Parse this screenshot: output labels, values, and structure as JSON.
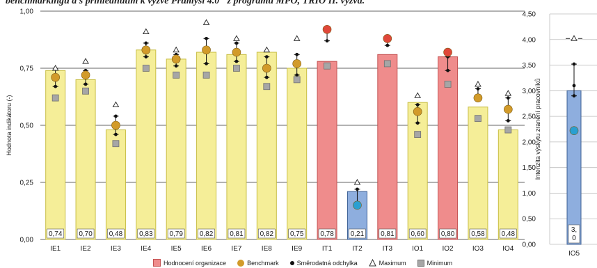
{
  "caption": "benchmarkingu a s přihlédnutím k výzvě Průmysl 4.0\" z programu MPO, TRIO II. výzva.",
  "colors": {
    "yellow": "#f5ee98",
    "yellow_stroke": "#c8be45",
    "red": "#ef8c8c",
    "red_stroke": "#c45353",
    "blue": "#8eaede",
    "blue_stroke": "#3c5f93",
    "benchmark": "#d29b2a",
    "benchmark_red": "#e0473a",
    "benchmark_blue": "#2a9fd1",
    "minimum": "#a6a6a6",
    "grid": "#666666"
  },
  "legend": [
    {
      "label": "Hodnocení organizace",
      "symbol": "red-square"
    },
    {
      "label": "Benchmark",
      "symbol": "orange-circle"
    },
    {
      "label": "Směrodatná odchylka",
      "symbol": "black-dot"
    },
    {
      "label": "Maximum",
      "symbol": "triangle"
    },
    {
      "label": "Minimum",
      "symbol": "grey-square"
    }
  ],
  "chart_data": [
    {
      "type": "bar",
      "ylabel": "Hodnota indikátoru (-)",
      "ylim": [
        0,
        1
      ],
      "yticks": [
        0,
        0.25,
        0.5,
        0.75,
        1
      ],
      "ytick_labels": [
        "0,00",
        "0,25",
        "0,50",
        "0,75",
        "1,00"
      ],
      "categories": [
        "IE1",
        "IE2",
        "IE3",
        "IE4",
        "IE5",
        "IE6",
        "IE7",
        "IE8",
        "IE9",
        "IT1",
        "IT2",
        "IT3",
        "IO1",
        "IO2",
        "IO3",
        "IO4"
      ],
      "bar_colors": [
        "yellow",
        "yellow",
        "yellow",
        "yellow",
        "yellow",
        "yellow",
        "yellow",
        "yellow",
        "yellow",
        "red",
        "blue",
        "red",
        "yellow",
        "red",
        "yellow",
        "yellow"
      ],
      "values": [
        0.74,
        0.7,
        0.48,
        0.83,
        0.79,
        0.82,
        0.81,
        0.82,
        0.75,
        0.78,
        0.21,
        0.81,
        0.6,
        0.8,
        0.58,
        0.48
      ],
      "value_labels": [
        "0,74",
        "0,70",
        "0,48",
        "0,83",
        "0,79",
        "0,82",
        "0,81",
        "0,82",
        "0,75",
        "0,78",
        "0,21",
        "0,81",
        "0,60",
        "0,80",
        "0,58",
        "0,48"
      ],
      "benchmark": [
        0.71,
        0.72,
        0.5,
        0.83,
        0.79,
        0.83,
        0.82,
        0.75,
        0.77,
        0.92,
        0.15,
        0.88,
        0.56,
        0.82,
        0.62,
        0.57
      ],
      "benchmark_colors": [
        "orange",
        "orange",
        "orange",
        "orange",
        "orange",
        "orange",
        "orange",
        "orange",
        "orange",
        "red",
        "blue",
        "red",
        "orange",
        "red",
        "orange",
        "orange"
      ],
      "sd_upper": [
        0.75,
        0.74,
        0.54,
        0.86,
        0.81,
        0.88,
        0.86,
        0.8,
        0.81,
        0.87,
        0.22,
        0.85,
        0.59,
        0.8,
        0.66,
        0.62
      ],
      "sd_lower": [
        0.67,
        0.68,
        0.46,
        0.8,
        0.76,
        0.77,
        0.78,
        0.71,
        0.72,
        null,
        null,
        null,
        0.51,
        0.74,
        null,
        0.52
      ],
      "maximum": [
        0.75,
        0.78,
        0.59,
        0.91,
        0.83,
        0.95,
        0.88,
        0.83,
        0.88,
        null,
        0.25,
        null,
        0.63,
        null,
        0.68,
        0.64
      ],
      "minimum": [
        0.62,
        0.65,
        0.42,
        0.75,
        0.72,
        0.72,
        0.75,
        0.67,
        0.7,
        0.76,
        null,
        0.77,
        0.46,
        0.68,
        0.53,
        0.48
      ]
    },
    {
      "type": "bar",
      "ylabel": "Intenzita výskytu zranění pracovníků",
      "ylim": [
        0,
        4.5
      ],
      "yticks": [
        0,
        0.5,
        1,
        1.5,
        2,
        2.5,
        3,
        3.5,
        4,
        4.5
      ],
      "ytick_labels": [
        "0,00",
        "0,50",
        "1,00",
        "1,50",
        "2,00",
        "2,50",
        "3,00",
        "3,50",
        "4,00",
        "4,50"
      ],
      "categories": [
        "IO5"
      ],
      "bar_colors": [
        "blue"
      ],
      "values": [
        3.0
      ],
      "value_labels": [
        "3,\n0"
      ],
      "benchmark": [
        2.22
      ],
      "benchmark_colors": [
        "blue"
      ],
      "sd_upper": [
        3.52
      ],
      "sd_mid": [
        3.1
      ],
      "sd_lower": [
        2.9
      ],
      "maximum": [
        4.02
      ],
      "minimum": [
        null
      ]
    }
  ]
}
